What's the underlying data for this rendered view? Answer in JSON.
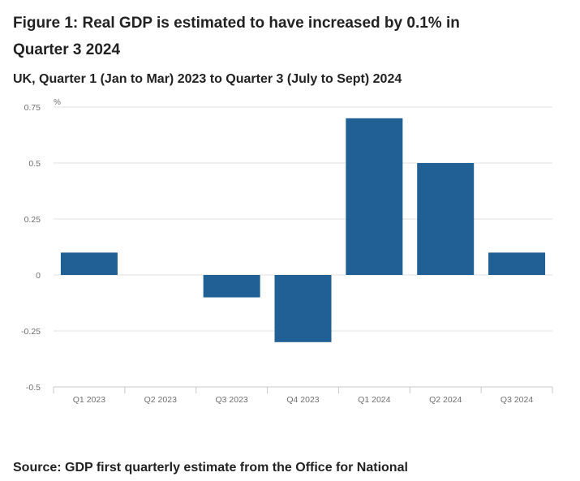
{
  "chart_data": {
    "type": "bar",
    "title": "Figure 1: Real GDP is estimated to have increased by 0.1% in Quarter 3 2024",
    "subtitle": "UK, Quarter 1 (Jan to Mar) 2023 to Quarter 3 (July to Sept) 2024",
    "ylabel": "%",
    "xlabel": "",
    "categories": [
      "Q1 2023",
      "Q2 2023",
      "Q3 2023",
      "Q4 2023",
      "Q1 2024",
      "Q2 2024",
      "Q3 2024"
    ],
    "values": [
      0.1,
      0.0,
      -0.1,
      -0.3,
      0.7,
      0.5,
      0.1
    ],
    "ylim": [
      -0.5,
      0.75
    ],
    "yticks": [
      0.75,
      0.5,
      0.25,
      0,
      -0.25,
      -0.5
    ],
    "ytick_labels": [
      "0.75",
      "0.5",
      "0.25",
      "0",
      "-0.25",
      "-0.5"
    ],
    "grid": true,
    "bar_color": "#206095",
    "source": "Source: GDP first quarterly estimate from the Office for National"
  }
}
